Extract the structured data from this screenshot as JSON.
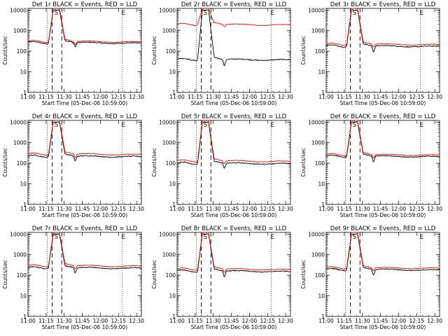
{
  "figure": {
    "time_ticks": [
      "11:00",
      "11:15",
      "11:30",
      "11:45",
      "12:00",
      "12:15",
      "12:30"
    ],
    "ytick_labels": [
      "1",
      "10",
      "100",
      "1000",
      "10000"
    ],
    "ylabel": "Counts/sec",
    "xlabel": "Start Time (05-Dec-06 10:59:00)",
    "marker_letters": [
      "S",
      "E"
    ]
  },
  "colors": {
    "events": "#000000",
    "lld": "#ff0000",
    "background": "#ffffff"
  },
  "chart_data": [
    {
      "type": "line",
      "title": "Det 1r BLACK = Events, RED = LLD",
      "yscale": "log",
      "ylim": [
        1,
        12000
      ],
      "xlim_minutes_after_start": [
        1,
        95
      ],
      "series": [
        {
          "name": "Events",
          "baseline": 260,
          "peak": 10000,
          "dip": 150
        },
        {
          "name": "LLD",
          "baseline": 300,
          "peak": 12000,
          "dip": 200
        }
      ]
    },
    {
      "type": "line",
      "title": "Det 2r BLACK = Events, RED = LLD",
      "yscale": "log",
      "ylim": [
        1,
        12000
      ],
      "xlim_minutes_after_start": [
        1,
        95
      ],
      "series": [
        {
          "name": "Events",
          "baseline": 40,
          "peak": 10000,
          "dip": 17
        },
        {
          "name": "LLD",
          "baseline": 2000,
          "peak": 12000,
          "dip": 1500
        }
      ]
    },
    {
      "type": "line",
      "title": "Det 3r BLACK = Events, RED = LLD",
      "yscale": "log",
      "ylim": [
        1,
        12000
      ],
      "xlim_minutes_after_start": [
        1,
        95
      ],
      "series": [
        {
          "name": "Events",
          "baseline": 180,
          "peak": 10000,
          "dip": 80
        },
        {
          "name": "LLD",
          "baseline": 220,
          "peak": 12000,
          "dip": 150
        }
      ]
    },
    {
      "type": "line",
      "title": "Det 4r BLACK = Events, RED = LLD",
      "yscale": "log",
      "ylim": [
        1,
        12000
      ],
      "xlim_minutes_after_start": [
        1,
        95
      ],
      "series": [
        {
          "name": "Events",
          "baseline": 220,
          "peak": 10000,
          "dip": 120
        },
        {
          "name": "LLD",
          "baseline": 280,
          "peak": 12000,
          "dip": 180
        }
      ]
    },
    {
      "type": "line",
      "title": "Det 5r BLACK = Events, RED = LLD",
      "yscale": "log",
      "ylim": [
        1,
        12000
      ],
      "xlim_minutes_after_start": [
        1,
        95
      ],
      "series": [
        {
          "name": "Events",
          "baseline": 100,
          "peak": 10000,
          "dip": 50
        },
        {
          "name": "LLD",
          "baseline": 130,
          "peak": 12000,
          "dip": 90
        }
      ]
    },
    {
      "type": "line",
      "title": "Det 6r BLACK = Events, RED = LLD",
      "yscale": "log",
      "ylim": [
        1,
        12000
      ],
      "xlim_minutes_after_start": [
        1,
        95
      ],
      "series": [
        {
          "name": "Events",
          "baseline": 220,
          "peak": 10000,
          "dip": 100
        },
        {
          "name": "LLD",
          "baseline": 260,
          "peak": 12000,
          "dip": 170
        }
      ]
    },
    {
      "type": "line",
      "title": "Det 7r BLACK = Events, RED = LLD",
      "yscale": "log",
      "ylim": [
        1,
        12000
      ],
      "xlim_minutes_after_start": [
        1,
        95
      ],
      "series": [
        {
          "name": "Events",
          "baseline": 230,
          "peak": 10000,
          "dip": 120
        },
        {
          "name": "LLD",
          "baseline": 290,
          "peak": 12000,
          "dip": 190
        }
      ]
    },
    {
      "type": "line",
      "title": "Det 8r BLACK = Events, RED = LLD",
      "yscale": "log",
      "ylim": [
        1,
        12000
      ],
      "xlim_minutes_after_start": [
        1,
        95
      ],
      "series": [
        {
          "name": "Events",
          "baseline": 160,
          "peak": 10000,
          "dip": 70
        },
        {
          "name": "LLD",
          "baseline": 200,
          "peak": 12000,
          "dip": 130
        }
      ]
    },
    {
      "type": "line",
      "title": "Det 9r BLACK = Events, RED = LLD",
      "yscale": "log",
      "ylim": [
        1,
        12000
      ],
      "xlim_minutes_after_start": [
        1,
        95
      ],
      "series": [
        {
          "name": "Events",
          "baseline": 190,
          "peak": 10000,
          "dip": 90
        },
        {
          "name": "LLD",
          "baseline": 230,
          "peak": 12000,
          "dip": 150
        }
      ]
    }
  ]
}
